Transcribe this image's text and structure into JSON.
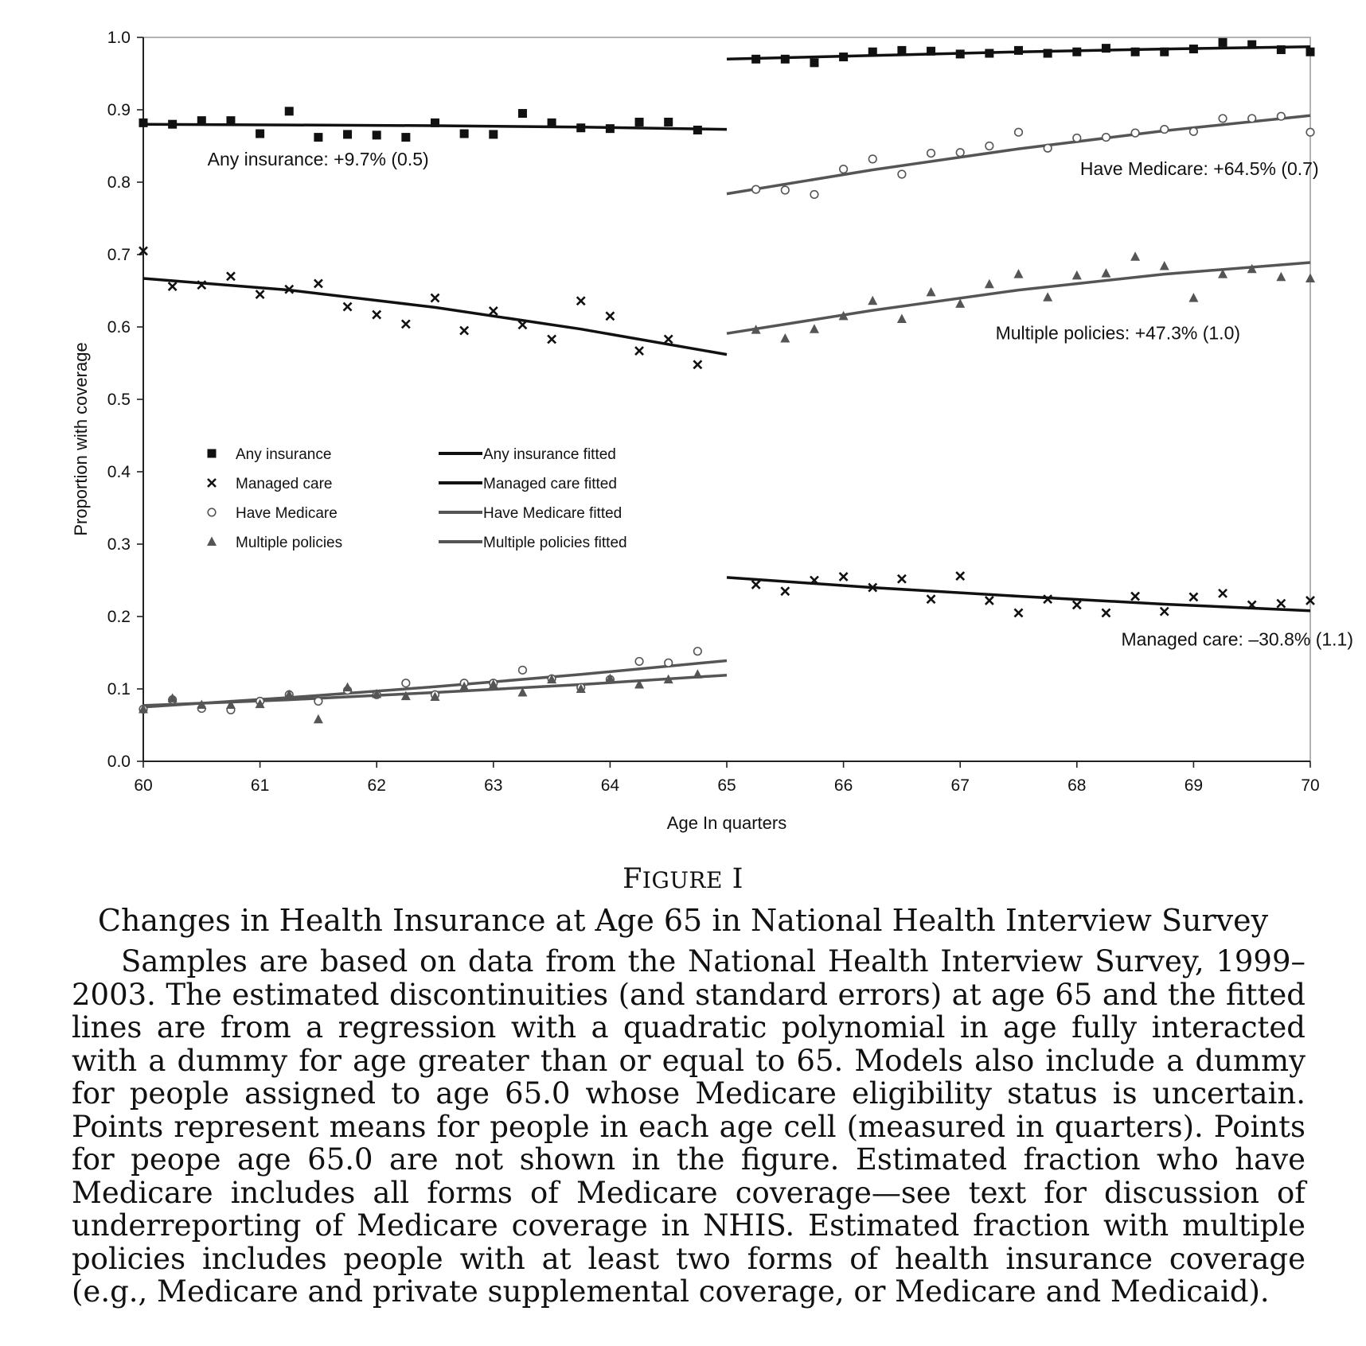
{
  "figure": {
    "label_prefix": "F",
    "label_smallcaps": "IGURE",
    "label_suffix": " I",
    "title": "Changes in Health Insurance at Age 65 in National Health Interview Survey",
    "caption": "Samples are based on data from the National Health Interview Survey, 1999–2003. The estimated discontinuities (and standard errors) at age 65 and the fitted lines are from a regression with a quadratic polynomial in age fully interacted with a dummy for age greater than or equal to 65. Models also include a dummy for people assigned to age 65.0 whose Medicare eligibility status is uncertain. Points represent means for people in each age cell (measured in quarters). Points for peope age 65.0 are not shown in the figure. Estimated fraction who have Medicare includes all forms of Medicare coverage—see text for discussion of underreporting of Medicare coverage in NHIS. Estimated fraction with multiple policies includes people with at least two forms of health insurance coverage (e.g., Medicare and private supplemental coverage, or Medicare and Medicaid)."
  },
  "chart_data": {
    "type": "scatter",
    "xlabel": "Age In quarters",
    "ylabel": "Proportion with coverage",
    "xlim": [
      60,
      70
    ],
    "ylim": [
      0.0,
      1.0
    ],
    "x_ticks": [
      60,
      61,
      62,
      63,
      64,
      65,
      66,
      67,
      68,
      69,
      70
    ],
    "x_tick_labels": [
      "60",
      "61",
      "62",
      "63",
      "64",
      "65",
      "66",
      "67",
      "68",
      "69",
      "70"
    ],
    "y_ticks": [
      0.0,
      0.1,
      0.2,
      0.3,
      0.4,
      0.5,
      0.6,
      0.7,
      0.8,
      0.9,
      1.0
    ],
    "y_tick_labels": [
      "0.0",
      "0.1",
      "0.2",
      "0.3",
      "0.4",
      "0.5",
      "0.6",
      "0.7",
      "0.8",
      "0.9",
      "1.0"
    ],
    "grid": false,
    "legend_position": "center-left",
    "x": [
      60,
      60.25,
      60.5,
      60.75,
      61,
      61.25,
      61.5,
      61.75,
      62,
      62.25,
      62.5,
      62.75,
      63,
      63.25,
      63.5,
      63.75,
      64,
      64.25,
      64.5,
      64.75,
      65.25,
      65.5,
      65.75,
      66,
      66.25,
      66.5,
      66.75,
      67,
      67.25,
      67.5,
      67.75,
      68,
      68.25,
      68.5,
      68.75,
      69,
      69.25,
      69.5,
      69.75,
      70
    ],
    "series": [
      {
        "name": "Any insurance",
        "marker": "square",
        "color": "#111111",
        "values": [
          0.882,
          0.88,
          0.885,
          0.885,
          0.867,
          0.898,
          0.862,
          0.866,
          0.865,
          0.862,
          0.882,
          0.867,
          0.866,
          0.895,
          0.882,
          0.875,
          0.874,
          0.883,
          0.883,
          0.872,
          0.97,
          0.97,
          0.965,
          0.973,
          0.98,
          0.982,
          0.981,
          0.977,
          0.978,
          0.982,
          0.978,
          0.98,
          0.985,
          0.98,
          0.98,
          0.984,
          0.993,
          0.99,
          0.983,
          0.98
        ]
      },
      {
        "name": "Managed care",
        "marker": "x",
        "color": "#111111",
        "values": [
          0.705,
          0.656,
          0.658,
          0.67,
          0.645,
          0.652,
          0.66,
          0.628,
          0.617,
          0.604,
          0.64,
          0.595,
          0.622,
          0.603,
          0.583,
          0.636,
          0.615,
          0.567,
          0.583,
          0.548,
          0.244,
          0.235,
          0.25,
          0.255,
          0.24,
          0.252,
          0.224,
          0.256,
          0.222,
          0.205,
          0.224,
          0.216,
          0.205,
          0.228,
          0.207,
          0.227,
          0.232,
          0.216,
          0.218,
          0.222
        ]
      },
      {
        "name": "Have Medicare",
        "marker": "circle",
        "color": "#555555",
        "values": [
          0.072,
          0.085,
          0.073,
          0.071,
          0.083,
          0.092,
          0.083,
          0.098,
          0.092,
          0.108,
          0.092,
          0.108,
          0.108,
          0.126,
          0.114,
          0.102,
          0.113,
          0.138,
          0.136,
          0.152,
          0.79,
          0.789,
          0.783,
          0.818,
          0.832,
          0.811,
          0.84,
          0.841,
          0.85,
          0.869,
          0.847,
          0.861,
          0.862,
          0.868,
          0.873,
          0.87,
          0.888,
          0.888,
          0.891,
          0.869
        ]
      },
      {
        "name": "Multiple policies",
        "marker": "triangle",
        "color": "#555555",
        "values": [
          0.072,
          0.087,
          0.078,
          0.078,
          0.079,
          0.092,
          0.058,
          0.102,
          0.093,
          0.09,
          0.089,
          0.103,
          0.106,
          0.095,
          0.113,
          0.1,
          0.114,
          0.106,
          0.113,
          0.12,
          0.596,
          0.584,
          0.597,
          0.615,
          0.636,
          0.611,
          0.648,
          0.632,
          0.659,
          0.673,
          0.641,
          0.671,
          0.674,
          0.697,
          0.684,
          0.64,
          0.673,
          0.68,
          0.669,
          0.667
        ]
      }
    ],
    "fitted": [
      {
        "name": "Any insurance fitted",
        "color": "#111111",
        "left": {
          "x": [
            60,
            61.25,
            62.5,
            63.75,
            65
          ],
          "y": [
            0.88,
            0.879,
            0.878,
            0.876,
            0.873
          ]
        },
        "right": {
          "x": [
            65,
            66.25,
            67.5,
            68.75,
            70
          ],
          "y": [
            0.97,
            0.975,
            0.98,
            0.984,
            0.987
          ]
        }
      },
      {
        "name": "Managed care fitted",
        "color": "#111111",
        "left": {
          "x": [
            60,
            61.25,
            62.5,
            63.75,
            65
          ],
          "y": [
            0.667,
            0.651,
            0.627,
            0.597,
            0.562
          ]
        },
        "right": {
          "x": [
            65,
            66.25,
            67.5,
            68.75,
            70
          ],
          "y": [
            0.254,
            0.24,
            0.228,
            0.217,
            0.208
          ]
        }
      },
      {
        "name": "Have Medicare fitted",
        "color": "#555555",
        "left": {
          "x": [
            60,
            61.25,
            62.5,
            63.75,
            65
          ],
          "y": [
            0.075,
            0.088,
            0.103,
            0.12,
            0.139
          ]
        },
        "right": {
          "x": [
            65,
            66.25,
            67.5,
            68.75,
            70
          ],
          "y": [
            0.784,
            0.817,
            0.846,
            0.871,
            0.892
          ]
        }
      },
      {
        "name": "Multiple policies fitted",
        "color": "#555555",
        "left": {
          "x": [
            60,
            61.25,
            62.5,
            63.75,
            65
          ],
          "y": [
            0.077,
            0.085,
            0.095,
            0.106,
            0.119
          ]
        },
        "right": {
          "x": [
            65,
            66.25,
            67.5,
            68.75,
            70
          ],
          "y": [
            0.591,
            0.623,
            0.651,
            0.673,
            0.689
          ]
        }
      }
    ],
    "annotations": [
      {
        "text": "Any insurance: +9.7% (0.5)",
        "x": 60.55,
        "y": 0.823,
        "anchor": "start"
      },
      {
        "text": "Have Medicare: +64.5% (0.7)",
        "x": 69.05,
        "y": 0.81,
        "anchor": "middle"
      },
      {
        "text": "Multiple policies: +47.3% (1.0)",
        "x": 69.4,
        "y": 0.583,
        "anchor": "end"
      },
      {
        "text": "Managed care: –30.8% (1.1)",
        "x": 68.38,
        "y": 0.16,
        "anchor": "start"
      }
    ]
  }
}
